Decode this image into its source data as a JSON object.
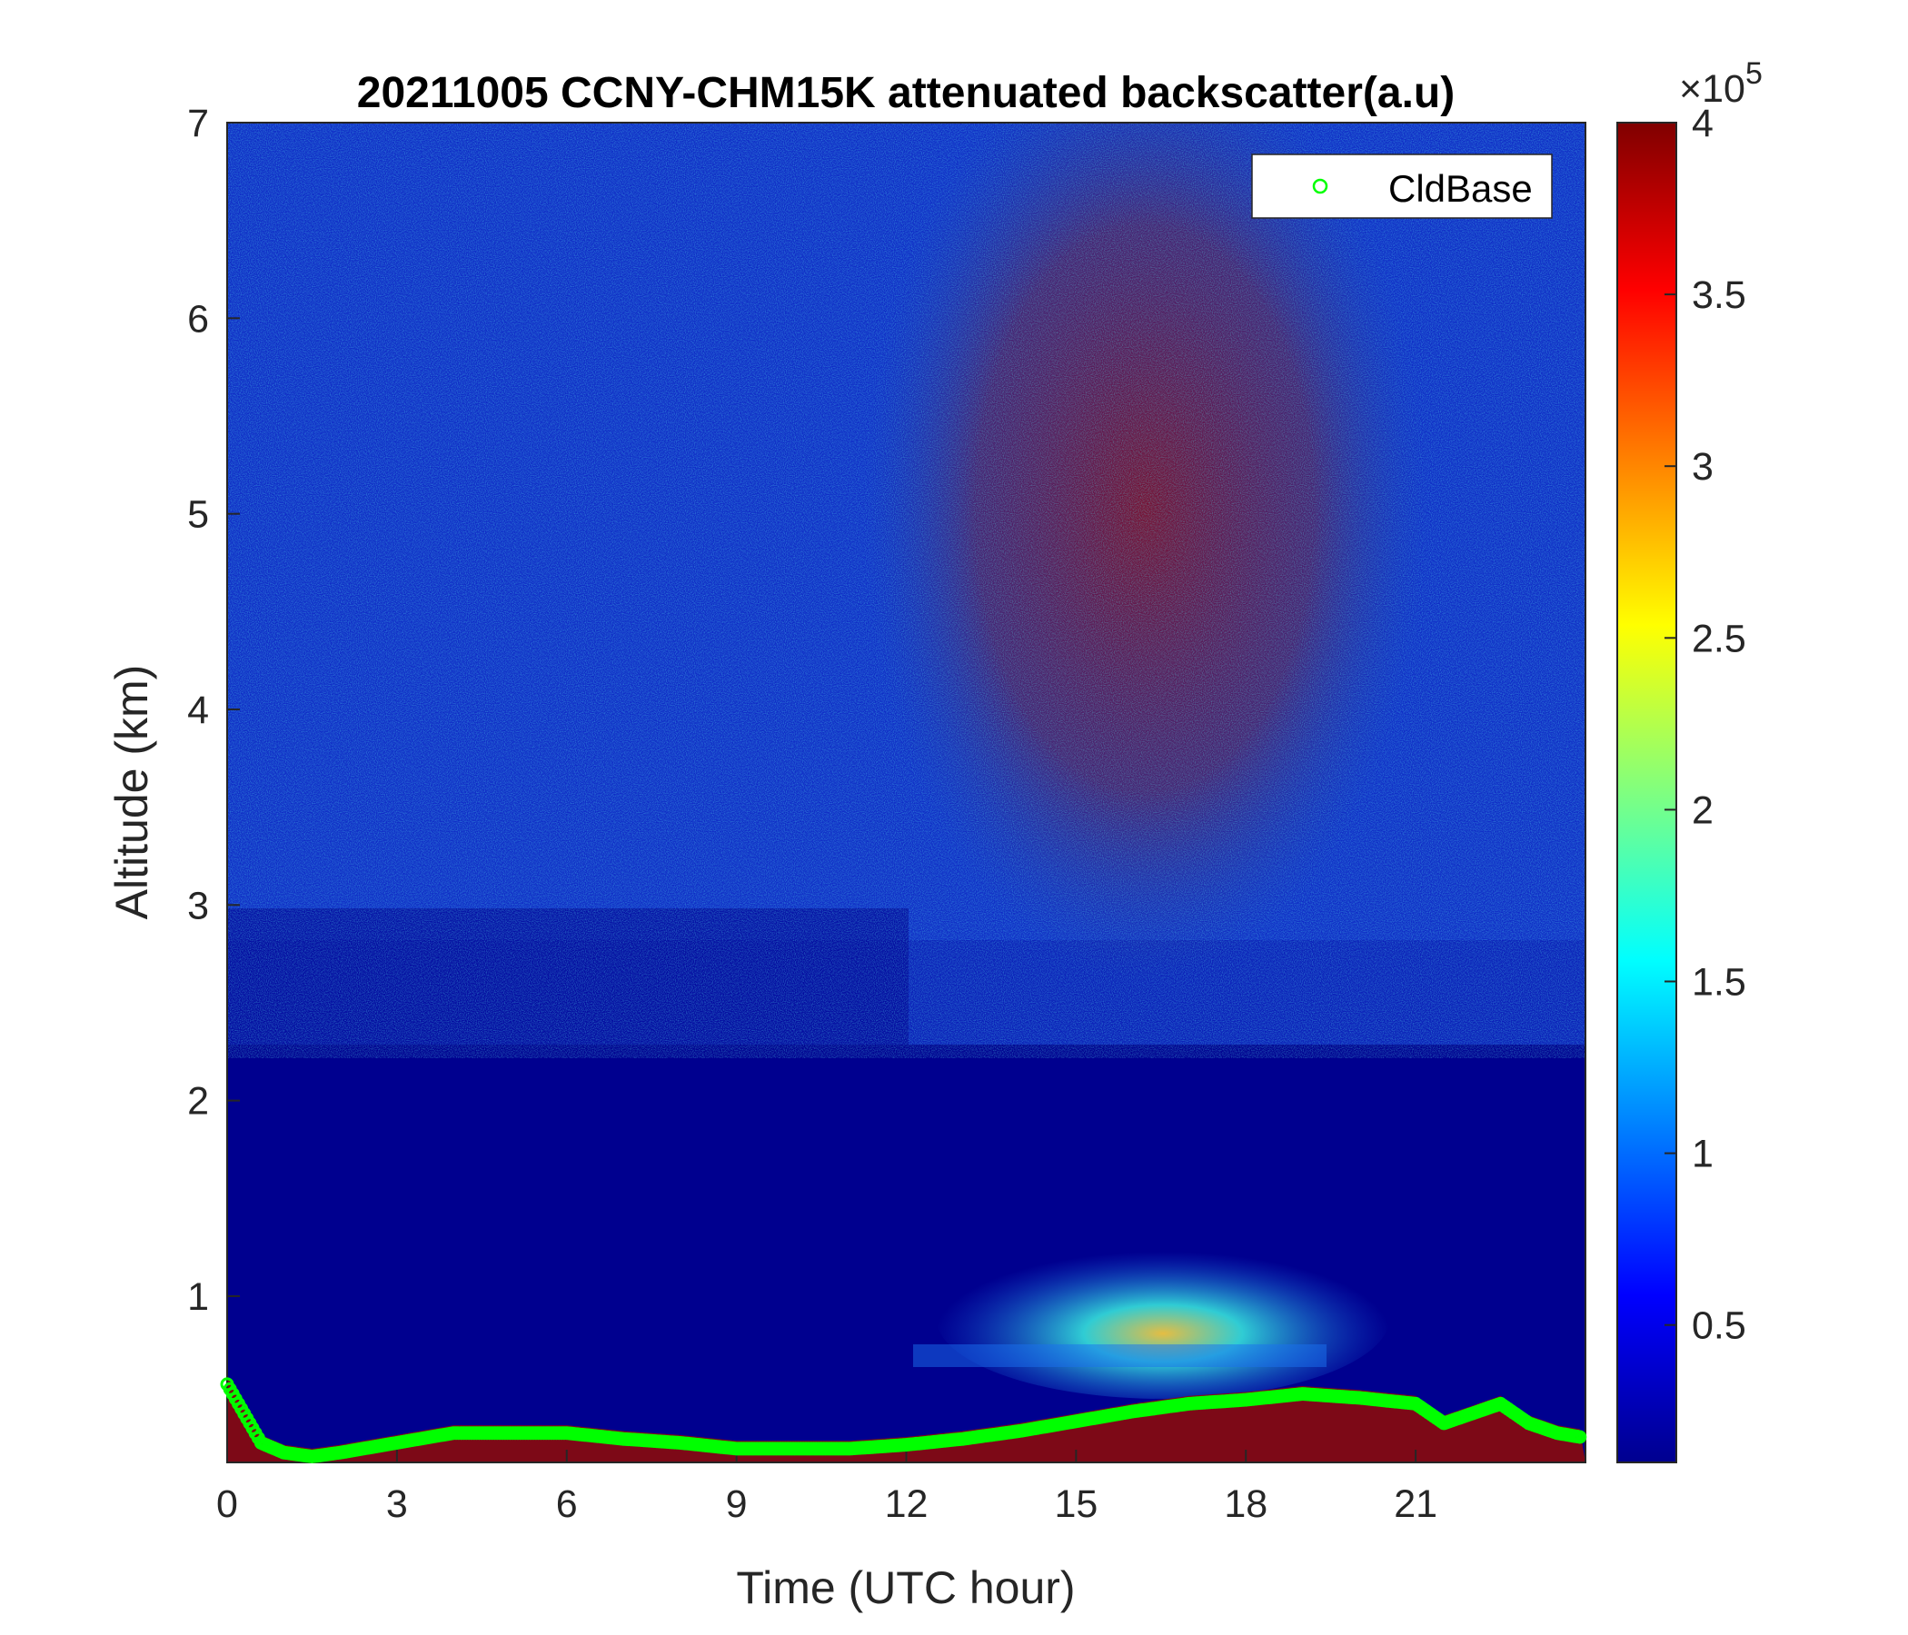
{
  "chart_data": {
    "type": "heatmap",
    "title": "20211005 CCNY-CHM15K attenuated backscatter(a.u)",
    "xlabel": "Time (UTC hour)",
    "ylabel": "Altitude (km)",
    "xlim": [
      0,
      24
    ],
    "ylim": [
      0.15,
      7
    ],
    "xticks": [
      "0",
      "3",
      "6",
      "9",
      "12",
      "15",
      "18",
      "21"
    ],
    "yticks": [
      "1",
      "2",
      "3",
      "4",
      "5",
      "6",
      "7"
    ],
    "colorbar": {
      "colormap": "jet",
      "range": [
        10000,
        400000
      ],
      "ticks": [
        "0.5",
        "1",
        "1.5",
        "2",
        "2.5",
        "3",
        "3.5",
        "4"
      ],
      "exponent_label": "×10",
      "exponent": "5"
    },
    "legend": {
      "location": "top-right",
      "entries": [
        "CldBase"
      ]
    },
    "series": [
      {
        "name": "CldBase",
        "marker": "circle",
        "color": "#00ff00",
        "x": [
          0.0,
          0.2,
          0.4,
          0.6,
          1.0,
          1.5,
          2.0,
          3.0,
          4.0,
          5.0,
          6.0,
          7.0,
          8.0,
          9.0,
          10.0,
          11.0,
          12.0,
          13.0,
          14.0,
          15.0,
          16.0,
          17.0,
          18.0,
          19.0,
          20.0,
          21.0,
          21.5,
          22.0,
          22.5,
          23.0,
          23.5,
          23.9
        ],
        "y": [
          0.55,
          0.45,
          0.35,
          0.25,
          0.2,
          0.18,
          0.2,
          0.25,
          0.3,
          0.3,
          0.3,
          0.27,
          0.25,
          0.22,
          0.22,
          0.22,
          0.24,
          0.27,
          0.31,
          0.36,
          0.41,
          0.45,
          0.47,
          0.5,
          0.48,
          0.45,
          0.35,
          0.4,
          0.45,
          0.35,
          0.3,
          0.28
        ]
      }
    ]
  }
}
